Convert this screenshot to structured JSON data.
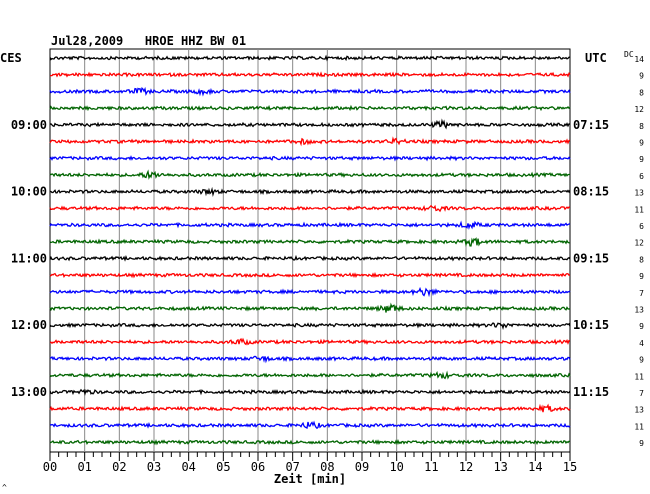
{
  "header": {
    "title": "Jul28,2009   HROE HHZ BW 01",
    "left_label": "CES",
    "right_label": "UTC",
    "dc_label": "DC"
  },
  "footer": {
    "corner_mark": "^"
  },
  "chart_data": {
    "type": "line",
    "title": "Jul28,2009   HROE HHZ BW 01",
    "xlabel": "Zeit [min]",
    "x_range_min": [
      0,
      15
    ],
    "x_ticks": [
      "00",
      "01",
      "02",
      "03",
      "04",
      "05",
      "06",
      "07",
      "08",
      "09",
      "10",
      "11",
      "12",
      "13",
      "14",
      "15"
    ],
    "trace_count": 24,
    "trace_minutes": 15,
    "trace_colors": [
      "#000000",
      "#ff0000",
      "#0000ff",
      "#006400"
    ],
    "left_time_labels": [
      {
        "trace": 4,
        "text": "09:00"
      },
      {
        "trace": 8,
        "text": "10:00"
      },
      {
        "trace": 12,
        "text": "11:00"
      },
      {
        "trace": 16,
        "text": "12:00"
      },
      {
        "trace": 20,
        "text": "13:00"
      }
    ],
    "right_time_labels": [
      {
        "trace": 4,
        "text": "07:15"
      },
      {
        "trace": 8,
        "text": "08:15"
      },
      {
        "trace": 12,
        "text": "09:15"
      },
      {
        "trace": 16,
        "text": "10:15"
      },
      {
        "trace": 20,
        "text": "11:15"
      }
    ],
    "dc_values": [
      "14",
      "9",
      "8",
      "12",
      "8",
      "9",
      "9",
      "6",
      "13",
      "11",
      "6",
      "12",
      "8",
      "9",
      "7",
      "13",
      "9",
      "4",
      "9",
      "11",
      "7",
      "13",
      "11",
      "9"
    ],
    "events": [
      {
        "trace": 2,
        "minute": 2.6,
        "amp": 2.0
      },
      {
        "trace": 2,
        "minute": 4.4,
        "amp": 1.6
      },
      {
        "trace": 4,
        "minute": 11.3,
        "amp": 2.4
      },
      {
        "trace": 5,
        "minute": 10.0,
        "amp": 1.8
      },
      {
        "trace": 5,
        "minute": 7.3,
        "amp": 1.5
      },
      {
        "trace": 7,
        "minute": 2.9,
        "amp": 2.6
      },
      {
        "trace": 8,
        "minute": 4.6,
        "amp": 1.8
      },
      {
        "trace": 9,
        "minute": 11.1,
        "amp": 2.2
      },
      {
        "trace": 10,
        "minute": 12.1,
        "amp": 2.4
      },
      {
        "trace": 11,
        "minute": 12.2,
        "amp": 3.2
      },
      {
        "trace": 14,
        "minute": 10.8,
        "amp": 3.0
      },
      {
        "trace": 15,
        "minute": 9.8,
        "amp": 3.6
      },
      {
        "trace": 16,
        "minute": 13.0,
        "amp": 1.8
      },
      {
        "trace": 17,
        "minute": 5.5,
        "amp": 2.0
      },
      {
        "trace": 18,
        "minute": 6.1,
        "amp": 1.8
      },
      {
        "trace": 19,
        "minute": 11.3,
        "amp": 2.0
      },
      {
        "trace": 20,
        "minute": 1.0,
        "amp": 1.5
      },
      {
        "trace": 21,
        "minute": 14.3,
        "amp": 2.2
      },
      {
        "trace": 22,
        "minute": 7.5,
        "amp": 2.4
      }
    ]
  }
}
